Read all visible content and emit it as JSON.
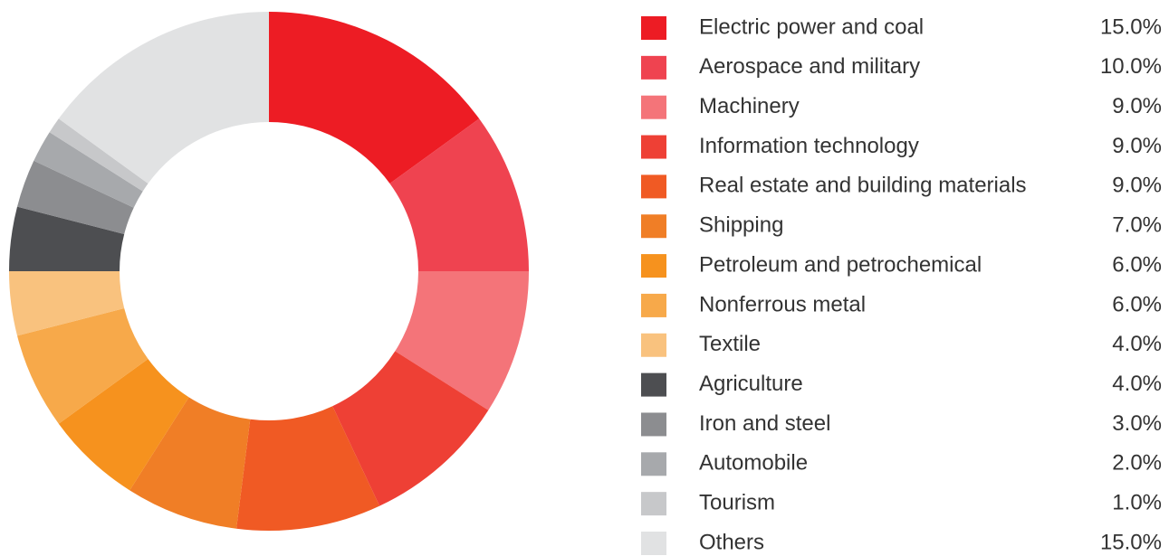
{
  "chart_data": {
    "type": "donut",
    "categories": [
      "Electric power and coal",
      "Aerospace and military",
      "Machinery",
      "Information technology",
      "Real estate and building materials",
      "Shipping",
      "Petroleum and petrochemical",
      "Nonferrous metal",
      "Textile",
      "Agriculture",
      "Iron and steel",
      "Automobile",
      "Tourism",
      "Others"
    ],
    "values": [
      15,
      10,
      9,
      9,
      9,
      7,
      6,
      6,
      4,
      4,
      3,
      2,
      1,
      15
    ],
    "value_labels": [
      "15.0%",
      "10.0%",
      "9.0%",
      "9.0%",
      "9.0%",
      "7.0%",
      "6.0%",
      "6.0%",
      "4.0%",
      "4.0%",
      "3.0%",
      "2.0%",
      "1.0%",
      "15.0%"
    ],
    "colors": [
      "#ed1c24",
      "#ef4350",
      "#f47479",
      "#ee4035",
      "#f05a24",
      "#f07e26",
      "#f6921e",
      "#f7a94a",
      "#f9c27e",
      "#4d4e51",
      "#8c8d90",
      "#a7a9ac",
      "#c7c8ca",
      "#e1e2e3"
    ]
  }
}
